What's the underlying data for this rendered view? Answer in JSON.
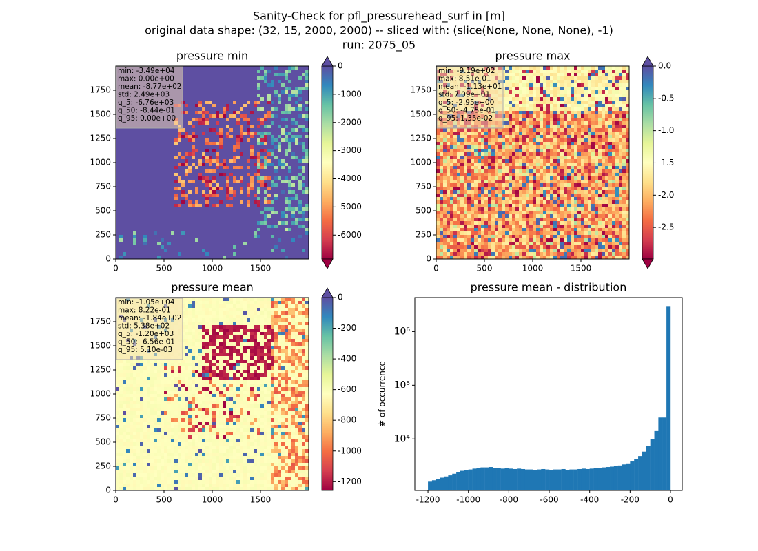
{
  "figure_title": [
    "Sanity-Check for pfl_pressurehead_surf in [m]",
    "original data shape: (32, 15, 2000, 2000) -- sliced with: (slice(None, None, None), -1)",
    "run: 2075_05"
  ],
  "chart_data": [
    {
      "type": "heatmap",
      "title": "pressure min",
      "xlim": [
        0,
        2000
      ],
      "ylim": [
        0,
        2000
      ],
      "xticks": [
        0,
        500,
        1000,
        1500
      ],
      "yticks": [
        0,
        250,
        500,
        750,
        1000,
        1250,
        1500,
        1750
      ],
      "colormap": "Spectral",
      "pattern": "min",
      "colorbar": {
        "lim": [
          -6850,
          0
        ],
        "extend": "both",
        "ticks": [
          0,
          -1000,
          -2000,
          -3000,
          -4000,
          -5000,
          -6000
        ]
      },
      "stats": [
        "min: -3.49e+04",
        "max: 0.00e+00",
        "mean: -8.77e+02",
        "std: 2.49e+03",
        "q_5: -6.76e+03",
        "q_50: -8.44e-01",
        "q_95: 0.00e+00"
      ]
    },
    {
      "type": "heatmap",
      "title": "pressure max",
      "xlim": [
        0,
        2000
      ],
      "ylim": [
        0,
        2000
      ],
      "xticks": [
        0,
        500,
        1000,
        1500
      ],
      "yticks": [
        0,
        250,
        500,
        750,
        1000,
        1250,
        1500,
        1750
      ],
      "colormap": "Spectral",
      "pattern": "max",
      "colorbar": {
        "lim": [
          -2.99,
          0
        ],
        "extend": "both",
        "ticks": [
          {
            "value": 0,
            "label": "0.0"
          },
          -0.5,
          {
            "value": -1,
            "label": "-1.0"
          },
          -1.5,
          {
            "value": -2,
            "label": "-2.0"
          },
          -2.5
        ]
      },
      "stats": [
        "min: -9.19e+02",
        "max: 8.51e-01",
        "mean: -1.13e+01",
        "std: 7.09e+01",
        "q_5: -2.95e+00",
        "q_50: -4.75e-01",
        "q_95: 1.35e-02"
      ]
    },
    {
      "type": "heatmap",
      "title": "pressure mean",
      "xlim": [
        0,
        2000
      ],
      "ylim": [
        0,
        2000
      ],
      "xticks": [
        0,
        500,
        1000,
        1500
      ],
      "yticks": [
        0,
        250,
        500,
        750,
        1000,
        1250,
        1500,
        1750
      ],
      "colormap": "Spectral",
      "pattern": "mean",
      "colorbar": {
        "lim": [
          -1257,
          0
        ],
        "extend": "max",
        "ticks": [
          0,
          -200,
          -400,
          -600,
          -800,
          -1000,
          -1200
        ]
      },
      "stats": [
        "min: -1.05e+04",
        "max: 8.22e-01",
        "mean: -1.84e+02",
        "std: 5.38e+02",
        "q_5: -1.20e+03",
        "q_50: -6.56e-01",
        "q_95: 5.10e-03"
      ]
    },
    {
      "type": "histogram",
      "title": "pressure mean - distribution",
      "ylabel": "# of occurrence",
      "color": "#1f77b4",
      "log_scale": true,
      "xlim": [
        -1265,
        58
      ],
      "ylim": [
        1100,
        4300000
      ],
      "xticks": [
        -1200,
        -1000,
        -800,
        -600,
        -400,
        -200,
        0
      ],
      "yticks": [
        {
          "value": 10000,
          "label": "10⁴"
        },
        {
          "value": 100000,
          "label": "10⁵"
        },
        {
          "value": 1000000,
          "label": "10⁶"
        }
      ],
      "bins": [
        -1200,
        -1180,
        -1160,
        -1140,
        -1120,
        -1100,
        -1080,
        -1060,
        -1040,
        -1020,
        -1000,
        -980,
        -960,
        -940,
        -920,
        -900,
        -880,
        -860,
        -840,
        -820,
        -800,
        -780,
        -760,
        -740,
        -720,
        -700,
        -680,
        -660,
        -640,
        -620,
        -600,
        -580,
        -560,
        -540,
        -520,
        -500,
        -480,
        -460,
        -440,
        -420,
        -400,
        -380,
        -360,
        -340,
        -320,
        -300,
        -280,
        -260,
        -240,
        -220,
        -200,
        -180,
        -160,
        -140,
        -120,
        -100,
        -80,
        -60,
        -40,
        -20,
        0
      ],
      "values": [
        1600,
        1700,
        1800,
        1900,
        2000,
        2100,
        2250,
        2400,
        2550,
        2650,
        2700,
        2800,
        2900,
        2950,
        2950,
        3000,
        2900,
        2850,
        2800,
        2850,
        2800,
        2750,
        2800,
        2750,
        2700,
        2700,
        2650,
        2700,
        2750,
        2700,
        2650,
        2700,
        2700,
        2750,
        2650,
        2700,
        2700,
        2750,
        2800,
        2750,
        2800,
        2850,
        2900,
        2950,
        3000,
        3050,
        3100,
        3200,
        3350,
        3500,
        3800,
        4200,
        4800,
        5800,
        7500,
        10000,
        14000,
        25000,
        25000,
        2900000
      ]
    }
  ]
}
